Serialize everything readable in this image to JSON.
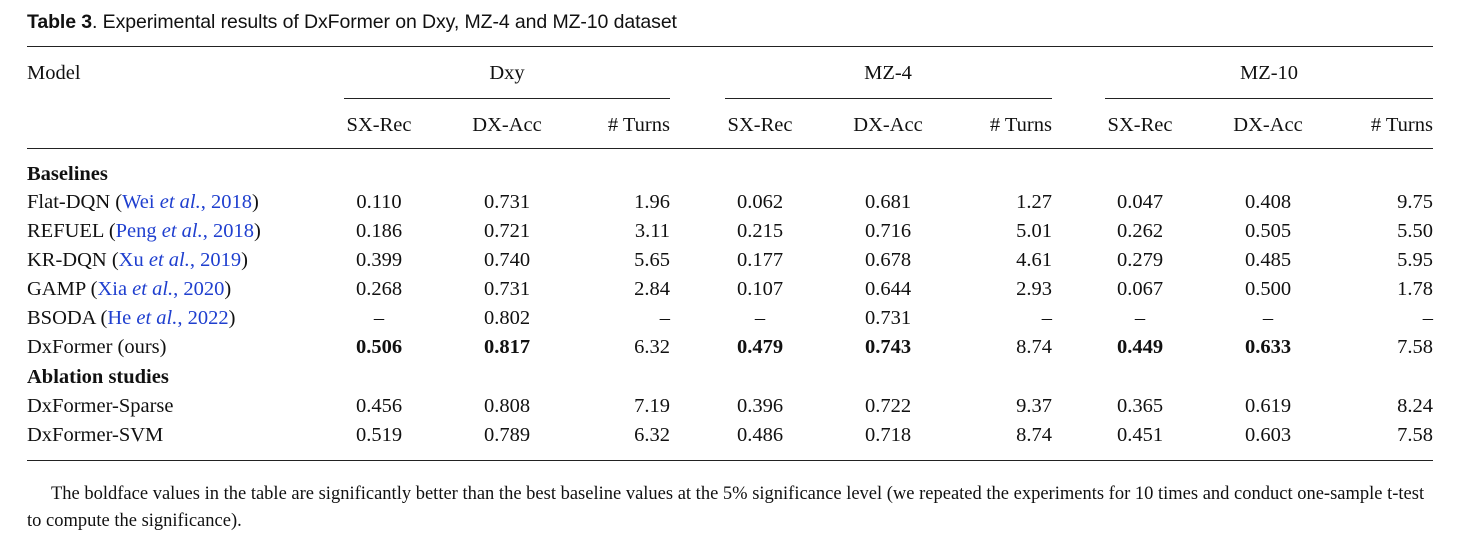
{
  "caption": {
    "label": "Table 3",
    "text": ". Experimental results of DxFormer on Dxy, MZ-4 and MZ-10 dataset"
  },
  "header": {
    "model": "Model",
    "groups": [
      "Dxy",
      "MZ-4",
      "MZ-10"
    ],
    "metrics": [
      "SX-Rec",
      "DX-Acc",
      "# Turns",
      "SX-Rec",
      "DX-Acc",
      "# Turns",
      "SX-Rec",
      "DX-Acc",
      "# Turns"
    ]
  },
  "sections": {
    "baselines": "Baselines",
    "ablation": "Ablation studies"
  },
  "rows": [
    {
      "name": "Flat-DQN",
      "cite": "Wei et al., 2018",
      "cite_pre": "Wei ",
      "cite_em": "et al.",
      "cite_post": ", 2018",
      "values": [
        "0.110",
        "0.731",
        "1.96",
        "0.062",
        "0.681",
        "1.27",
        "0.047",
        "0.408",
        "9.75"
      ],
      "bold": []
    },
    {
      "name": "REFUEL",
      "cite": "Peng et al., 2018",
      "cite_pre": "Peng ",
      "cite_em": "et al.",
      "cite_post": ", 2018",
      "values": [
        "0.186",
        "0.721",
        "3.11",
        "0.215",
        "0.716",
        "5.01",
        "0.262",
        "0.505",
        "5.50"
      ],
      "bold": []
    },
    {
      "name": "KR-DQN",
      "cite": "Xu et al., 2019",
      "cite_pre": "Xu ",
      "cite_em": "et al.",
      "cite_post": ", 2019",
      "values": [
        "0.399",
        "0.740",
        "5.65",
        "0.177",
        "0.678",
        "4.61",
        "0.279",
        "0.485",
        "5.95"
      ],
      "bold": []
    },
    {
      "name": "GAMP",
      "cite": "Xia et al., 2020",
      "cite_pre": "Xia ",
      "cite_em": "et al.",
      "cite_post": ", 2020",
      "values": [
        "0.268",
        "0.731",
        "2.84",
        "0.107",
        "0.644",
        "2.93",
        "0.067",
        "0.500",
        "1.78"
      ],
      "bold": []
    },
    {
      "name": "BSODA",
      "cite": "He et al., 2022",
      "cite_pre": "He ",
      "cite_em": "et al.",
      "cite_post": ", 2022",
      "values": [
        "–",
        "0.802",
        "–",
        "–",
        "0.731",
        "–",
        "–",
        "–",
        "–"
      ],
      "bold": []
    },
    {
      "name": "DxFormer (ours)",
      "cite": "",
      "cite_pre": "",
      "cite_em": "",
      "cite_post": "",
      "values": [
        "0.506",
        "0.817",
        "6.32",
        "0.479",
        "0.743",
        "8.74",
        "0.449",
        "0.633",
        "7.58"
      ],
      "bold": [
        0,
        1,
        3,
        4,
        6,
        7
      ]
    },
    {
      "name": "DxFormer-Sparse",
      "cite": "",
      "cite_pre": "",
      "cite_em": "",
      "cite_post": "",
      "values": [
        "0.456",
        "0.808",
        "7.19",
        "0.396",
        "0.722",
        "9.37",
        "0.365",
        "0.619",
        "8.24"
      ],
      "bold": []
    },
    {
      "name": "DxFormer-SVM",
      "cite": "",
      "cite_pre": "",
      "cite_em": "",
      "cite_post": "",
      "values": [
        "0.519",
        "0.789",
        "6.32",
        "0.486",
        "0.718",
        "8.74",
        "0.451",
        "0.603",
        "7.58"
      ],
      "bold": []
    }
  ],
  "footnote": "The boldface values in the table are significantly better than the best baseline values at the 5% significance level (we repeated the experiments for 10 times and conduct one-sample t-test to compute the significance).",
  "colors": {
    "citation": "#1f3fcf",
    "text": "#111111"
  }
}
